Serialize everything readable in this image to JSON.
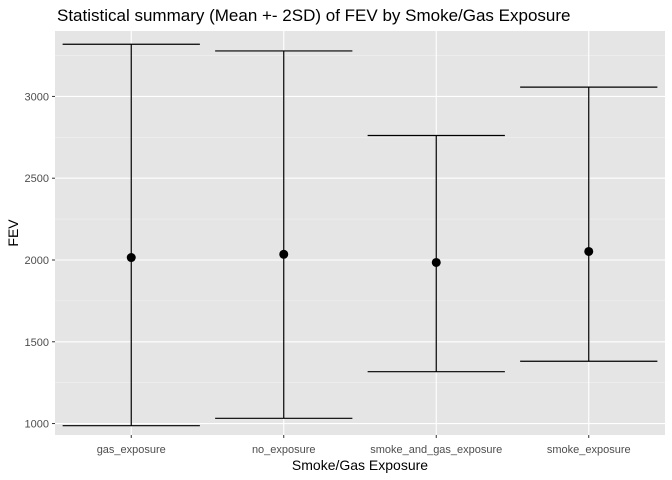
{
  "chart_data": {
    "type": "errorbar",
    "title": "Statistical summary (Mean +- 2SD) of FEV by Smoke/Gas Exposure",
    "xlabel": "Smoke/Gas Exposure",
    "ylabel": "FEV",
    "ylim": [
      930,
      3400
    ],
    "yticks": [
      1000,
      1500,
      2000,
      2500,
      3000
    ],
    "grid": true,
    "categories": [
      "gas_exposure",
      "no_exposure",
      "smoke_and_gas_exposure",
      "smoke_exposure"
    ],
    "series": [
      {
        "mean": [
          2015,
          2035,
          1985,
          2052
        ],
        "lower": [
          987,
          1032,
          1317,
          1381
        ],
        "upper": [
          3319,
          3278,
          2761,
          3057
        ]
      }
    ]
  },
  "colors": {
    "panel_background": "#e5e5e5",
    "grid_major": "#ffffff",
    "grid_minor": "#f2f2f2",
    "marks": "#000000",
    "tick_text": "#4d4d4d"
  }
}
